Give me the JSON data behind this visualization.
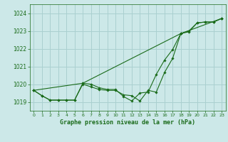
{
  "title": "Graphe pression niveau de la mer (hPa)",
  "bg_color": "#cce8e8",
  "grid_color": "#aad0d0",
  "line_color": "#1a6b1a",
  "xlim": [
    -0.5,
    23.5
  ],
  "ylim": [
    1018.5,
    1024.5
  ],
  "yticks": [
    1019,
    1020,
    1021,
    1022,
    1023,
    1024
  ],
  "xticks": [
    0,
    1,
    2,
    3,
    4,
    5,
    6,
    7,
    8,
    9,
    10,
    11,
    12,
    13,
    14,
    15,
    16,
    17,
    18,
    19,
    20,
    21,
    22,
    23
  ],
  "series1": [
    1019.65,
    1019.35,
    1019.1,
    1019.1,
    1019.1,
    1019.1,
    1020.0,
    1019.85,
    1019.7,
    1019.65,
    1019.65,
    1019.4,
    1019.35,
    1019.05,
    1019.65,
    1019.55,
    1020.65,
    1021.45,
    1022.85,
    1022.95,
    1023.45,
    1023.5,
    1023.5,
    1023.7
  ],
  "series2": [
    1019.65,
    1019.35,
    1019.1,
    1019.1,
    1019.1,
    1019.1,
    1020.05,
    1020.0,
    1019.8,
    1019.7,
    1019.7,
    1019.3,
    1019.05,
    1019.5,
    1019.55,
    1020.55,
    1021.35,
    1021.95,
    1022.85,
    1023.0,
    1023.45,
    1023.5,
    1023.5,
    1023.7
  ],
  "series3_x": [
    0,
    6,
    18,
    23
  ],
  "series3_y": [
    1019.65,
    1020.05,
    1022.85,
    1023.7
  ]
}
